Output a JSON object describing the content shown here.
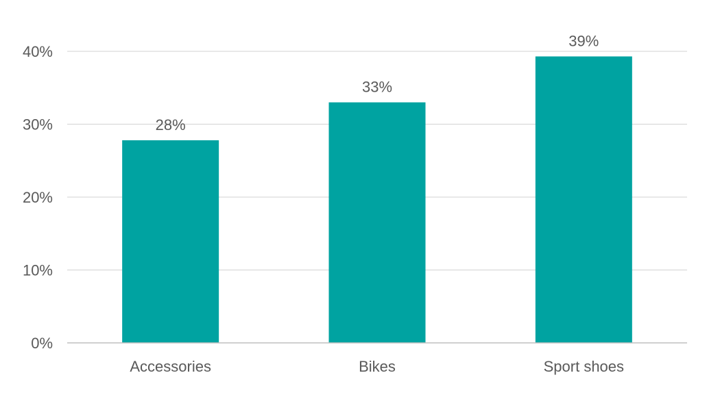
{
  "chart_data": {
    "type": "bar",
    "title": "",
    "xlabel": "",
    "ylabel": "",
    "categories": [
      "Accessories",
      "Bikes",
      "Sport shoes"
    ],
    "values": [
      27.8,
      33.0,
      39.3
    ],
    "data_labels": [
      "28%",
      "33%",
      "39%"
    ],
    "ylim": [
      0,
      40
    ],
    "yticks": [
      0,
      10,
      20,
      30,
      40
    ],
    "ytick_labels": [
      "0%",
      "10%",
      "20%",
      "30%",
      "40%"
    ],
    "grid": true,
    "legend": "none",
    "colors": {
      "bar": "#00a3a1",
      "grid": "#d9d9d9",
      "axis": "#bfbfbf",
      "text": "#595959"
    }
  }
}
